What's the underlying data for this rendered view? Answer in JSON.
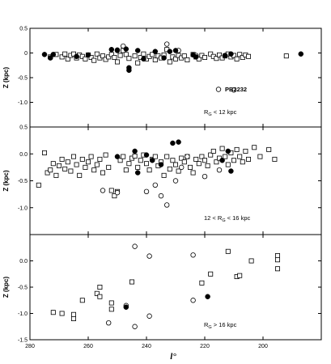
{
  "chart_data": {
    "type": "scatter",
    "xlabel": "l°",
    "x_axis": {
      "min": 280,
      "max": 180,
      "ticks": [
        280,
        260,
        240,
        220,
        200
      ]
    },
    "panels": [
      {
        "name": "top",
        "ylabel": "Z (kpc)",
        "ylim": [
          -1.5,
          0.5
        ],
        "yticks": [
          "0.5",
          "0",
          "-0.5",
          "-1.0"
        ],
        "ytick_values": [
          0.5,
          0,
          -0.5,
          -1.0
        ],
        "label": "R_G < 12 kpc",
        "label_main": "R",
        "label_sub": "G",
        "label_rest": " < 12 kpc",
        "legend_text": "PB2232",
        "squares": [
          [
            273,
            -0.08
          ],
          [
            271,
            -0.03
          ],
          [
            269,
            -0.08
          ],
          [
            268,
            -0.02
          ],
          [
            267,
            -0.12
          ],
          [
            266,
            -0.05
          ],
          [
            265,
            -0.02
          ],
          [
            264,
            -0.1
          ],
          [
            263,
            -0.04
          ],
          [
            262,
            -0.07
          ],
          [
            261,
            -0.12
          ],
          [
            260,
            -0.04
          ],
          [
            259,
            -0.09
          ],
          [
            258,
            -0.15
          ],
          [
            257,
            -0.02
          ],
          [
            256,
            -0.1
          ],
          [
            255,
            -0.06
          ],
          [
            254,
            -0.13
          ],
          [
            253,
            -0.08
          ],
          [
            252,
            -0.03
          ],
          [
            251,
            -0.09
          ],
          [
            250,
            -0.18
          ],
          [
            249,
            -0.05
          ],
          [
            248,
            0.05
          ],
          [
            247,
            -0.03
          ],
          [
            246,
            -0.11
          ],
          [
            244,
            -0.06
          ],
          [
            243,
            -0.2
          ],
          [
            242,
            -0.09
          ],
          [
            241,
            -0.02
          ],
          [
            240,
            -0.12
          ],
          [
            239,
            -0.07
          ],
          [
            238,
            -0.03
          ],
          [
            237,
            -0.14
          ],
          [
            236,
            -0.06
          ],
          [
            235,
            -0.1
          ],
          [
            234,
            -0.04
          ],
          [
            233,
            0.07
          ],
          [
            232,
            -0.18
          ],
          [
            231,
            -0.08
          ],
          [
            230,
            -0.12
          ],
          [
            229,
            -0.05
          ],
          [
            228,
            -0.1
          ],
          [
            227,
            -0.06
          ],
          [
            226,
            -0.14
          ],
          [
            224,
            -0.03
          ],
          [
            223,
            -0.08
          ],
          [
            222,
            -0.12
          ],
          [
            221,
            -0.05
          ],
          [
            220,
            -0.09
          ],
          [
            218,
            -0.02
          ],
          [
            217,
            -0.07
          ],
          [
            216,
            -0.11
          ],
          [
            215,
            -0.04
          ],
          [
            214,
            -0.1
          ],
          [
            213,
            -0.06
          ],
          [
            212,
            -0.02
          ],
          [
            211,
            -0.08
          ],
          [
            210,
            -0.05
          ],
          [
            209,
            -0.12
          ],
          [
            208,
            -0.03
          ],
          [
            207,
            -0.09
          ],
          [
            206,
            -0.04
          ],
          [
            205,
            -0.07
          ],
          [
            192,
            -0.06
          ]
        ],
        "circles": [
          [
            250,
            0.05
          ],
          [
            248,
            0.14
          ],
          [
            233,
            0.18
          ],
          [
            229,
            0.05
          ],
          [
            223,
            -0.05
          ],
          [
            210,
            -0.75
          ]
        ],
        "filled": [
          [
            275,
            -0.03
          ],
          [
            272,
            -0.03
          ],
          [
            273,
            -0.1
          ],
          [
            264,
            -0.07
          ],
          [
            260,
            -0.04
          ],
          [
            252,
            0.07
          ],
          [
            250,
            0.06
          ],
          [
            247,
            0.08
          ],
          [
            246,
            -0.3
          ],
          [
            246,
            -0.35
          ],
          [
            243,
            0.05
          ],
          [
            241,
            -0.12
          ],
          [
            237,
            0.03
          ],
          [
            234,
            -0.1
          ],
          [
            232,
            0.03
          ],
          [
            230,
            0.05
          ],
          [
            224,
            -0.04
          ],
          [
            223,
            -0.08
          ],
          [
            213,
            -0.05
          ],
          [
            211,
            -0.02
          ],
          [
            187,
            -0.02
          ]
        ]
      },
      {
        "name": "middle",
        "ylabel": "Z (kpc)",
        "ylim": [
          -1.5,
          0.5
        ],
        "yticks": [
          "0.0",
          "-0.5",
          "-1.0",
          "0.5"
        ],
        "ytick_values": [
          0.0,
          -0.5,
          -1.0,
          0.5
        ],
        "label": "12 < R_G < 16 kpc",
        "label_main": "12 < R",
        "label_sub": "G",
        "label_rest": " < 16 kpc",
        "squares": [
          [
            277,
            -0.58
          ],
          [
            275,
            0.02
          ],
          [
            274,
            -0.35
          ],
          [
            273,
            -0.3
          ],
          [
            272,
            -0.18
          ],
          [
            271,
            -0.4
          ],
          [
            270,
            -0.22
          ],
          [
            269,
            -0.1
          ],
          [
            268,
            -0.28
          ],
          [
            267,
            -0.15
          ],
          [
            266,
            -0.32
          ],
          [
            265,
            -0.05
          ],
          [
            264,
            -0.2
          ],
          [
            263,
            -0.4
          ],
          [
            262,
            -0.1
          ],
          [
            261,
            -0.25
          ],
          [
            260,
            -0.15
          ],
          [
            259,
            -0.05
          ],
          [
            258,
            -0.3
          ],
          [
            257,
            -0.2
          ],
          [
            256,
            -0.1
          ],
          [
            255,
            -0.35
          ],
          [
            254,
            -0.02
          ],
          [
            253,
            -0.25
          ],
          [
            252,
            -0.68
          ],
          [
            251,
            -0.78
          ],
          [
            250,
            -0.7
          ],
          [
            249,
            -0.12
          ],
          [
            248,
            -0.05
          ],
          [
            247,
            -0.3
          ],
          [
            246,
            -0.18
          ],
          [
            245,
            -0.08
          ],
          [
            244,
            -0.04
          ],
          [
            243,
            -0.25
          ],
          [
            242,
            -0.12
          ],
          [
            241,
            -0.02
          ],
          [
            240,
            -0.18
          ],
          [
            239,
            -0.3
          ],
          [
            238,
            -0.1
          ],
          [
            237,
            -0.05
          ],
          [
            236,
            -0.22
          ],
          [
            235,
            -0.15
          ],
          [
            234,
            -0.4
          ],
          [
            233,
            -0.05
          ],
          [
            232,
            -0.28
          ],
          [
            231,
            -0.12
          ],
          [
            230,
            -0.2
          ],
          [
            229,
            -0.32
          ],
          [
            228,
            -0.08
          ],
          [
            227,
            -0.15
          ],
          [
            226,
            -0.05
          ],
          [
            225,
            -0.25
          ],
          [
            224,
            -0.35
          ],
          [
            223,
            -0.1
          ],
          [
            222,
            -0.18
          ],
          [
            221,
            -0.05
          ],
          [
            220,
            -0.12
          ],
          [
            219,
            -0.22
          ],
          [
            218,
            -0.02
          ],
          [
            217,
            0.05
          ],
          [
            216,
            -0.15
          ],
          [
            215,
            -0.08
          ],
          [
            214,
            0.1
          ],
          [
            213,
            -0.05
          ],
          [
            212,
            -0.2
          ],
          [
            211,
            0.02
          ],
          [
            210,
            -0.12
          ],
          [
            209,
            0.08
          ],
          [
            208,
            -0.05
          ],
          [
            207,
            -0.15
          ],
          [
            206,
            0.05
          ],
          [
            205,
            -0.1
          ],
          [
            203,
            0.12
          ],
          [
            201,
            -0.05
          ],
          [
            198,
            0.08
          ],
          [
            196,
            -0.1
          ]
        ],
        "circles": [
          [
            255,
            -0.68
          ],
          [
            250,
            -0.72
          ],
          [
            244,
            -1.72
          ],
          [
            240,
            -0.7
          ],
          [
            239,
            -1.9
          ],
          [
            237,
            -0.58
          ],
          [
            235,
            -0.78
          ],
          [
            233,
            -0.95
          ],
          [
            230,
            -0.5
          ],
          [
            228,
            -0.25
          ],
          [
            226,
            -0.05
          ],
          [
            224,
            -1.88
          ],
          [
            220,
            -0.42
          ],
          [
            215,
            -0.3
          ]
        ],
        "filled": [
          [
            250,
            -0.05
          ],
          [
            244,
            0.05
          ],
          [
            243,
            -0.35
          ],
          [
            240,
            -0.02
          ],
          [
            238,
            -0.12
          ],
          [
            235,
            -0.2
          ],
          [
            231,
            0.2
          ],
          [
            229,
            0.22
          ],
          [
            214,
            -0.12
          ],
          [
            212,
            0.05
          ],
          [
            211,
            -0.32
          ]
        ]
      },
      {
        "name": "bottom",
        "ylabel": "Z (kpc)",
        "ylim": [
          -1.5,
          0.5
        ],
        "yticks": [
          "0.0",
          "-0.5",
          "-1.0",
          "-1.5"
        ],
        "ytick_values": [
          0.0,
          -0.5,
          -1.0,
          -1.5
        ],
        "label": "R_G > 16 kpc",
        "label_main": "R",
        "label_sub": "G",
        "label_rest": " > 16 kpc",
        "squares": [
          [
            272,
            -0.98
          ],
          [
            269,
            -1.0
          ],
          [
            265,
            -1.02
          ],
          [
            265,
            -1.1
          ],
          [
            262,
            -0.75
          ],
          [
            257,
            -0.62
          ],
          [
            256,
            -0.5
          ],
          [
            256,
            -0.68
          ],
          [
            252,
            -0.8
          ],
          [
            252,
            -0.92
          ],
          [
            245,
            -0.4
          ],
          [
            221,
            -0.42
          ],
          [
            218,
            -0.25
          ],
          [
            212,
            0.18
          ],
          [
            209,
            -0.3
          ],
          [
            208,
            -0.28
          ],
          [
            204,
            0.0
          ],
          [
            195,
            -0.15
          ],
          [
            195,
            0.02
          ],
          [
            195,
            0.1
          ]
        ],
        "circles": [
          [
            253,
            -1.18
          ],
          [
            247,
            -0.85
          ],
          [
            244,
            -1.25
          ],
          [
            239,
            -1.05
          ],
          [
            224,
            -0.75
          ]
        ],
        "filled": [
          [
            247,
            -0.88
          ],
          [
            219,
            -0.68
          ]
        ]
      }
    ]
  }
}
